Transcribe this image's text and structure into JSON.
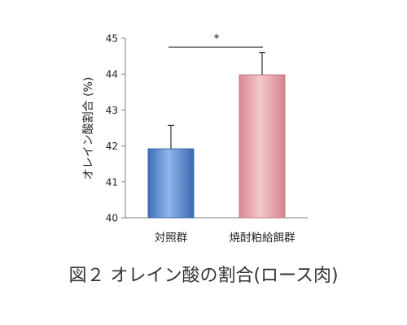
{
  "chart_data": {
    "type": "bar",
    "ylabel": "オレイン酸割合 (%)",
    "ylim": [
      40,
      45
    ],
    "yticks": [
      40,
      41,
      42,
      43,
      44,
      45
    ],
    "categories": [
      "対照群",
      "焼酎粕給餌群"
    ],
    "values": [
      41.92,
      43.98
    ],
    "errors": [
      0.65,
      0.62
    ],
    "bar_colors": [
      "#5b8fd6",
      "#e09aa2"
    ],
    "significance": {
      "label": "*",
      "between": [
        0,
        1
      ]
    },
    "grid": false,
    "legend": "none"
  },
  "caption": "図２ オレイン酸の割合(ロース肉)"
}
